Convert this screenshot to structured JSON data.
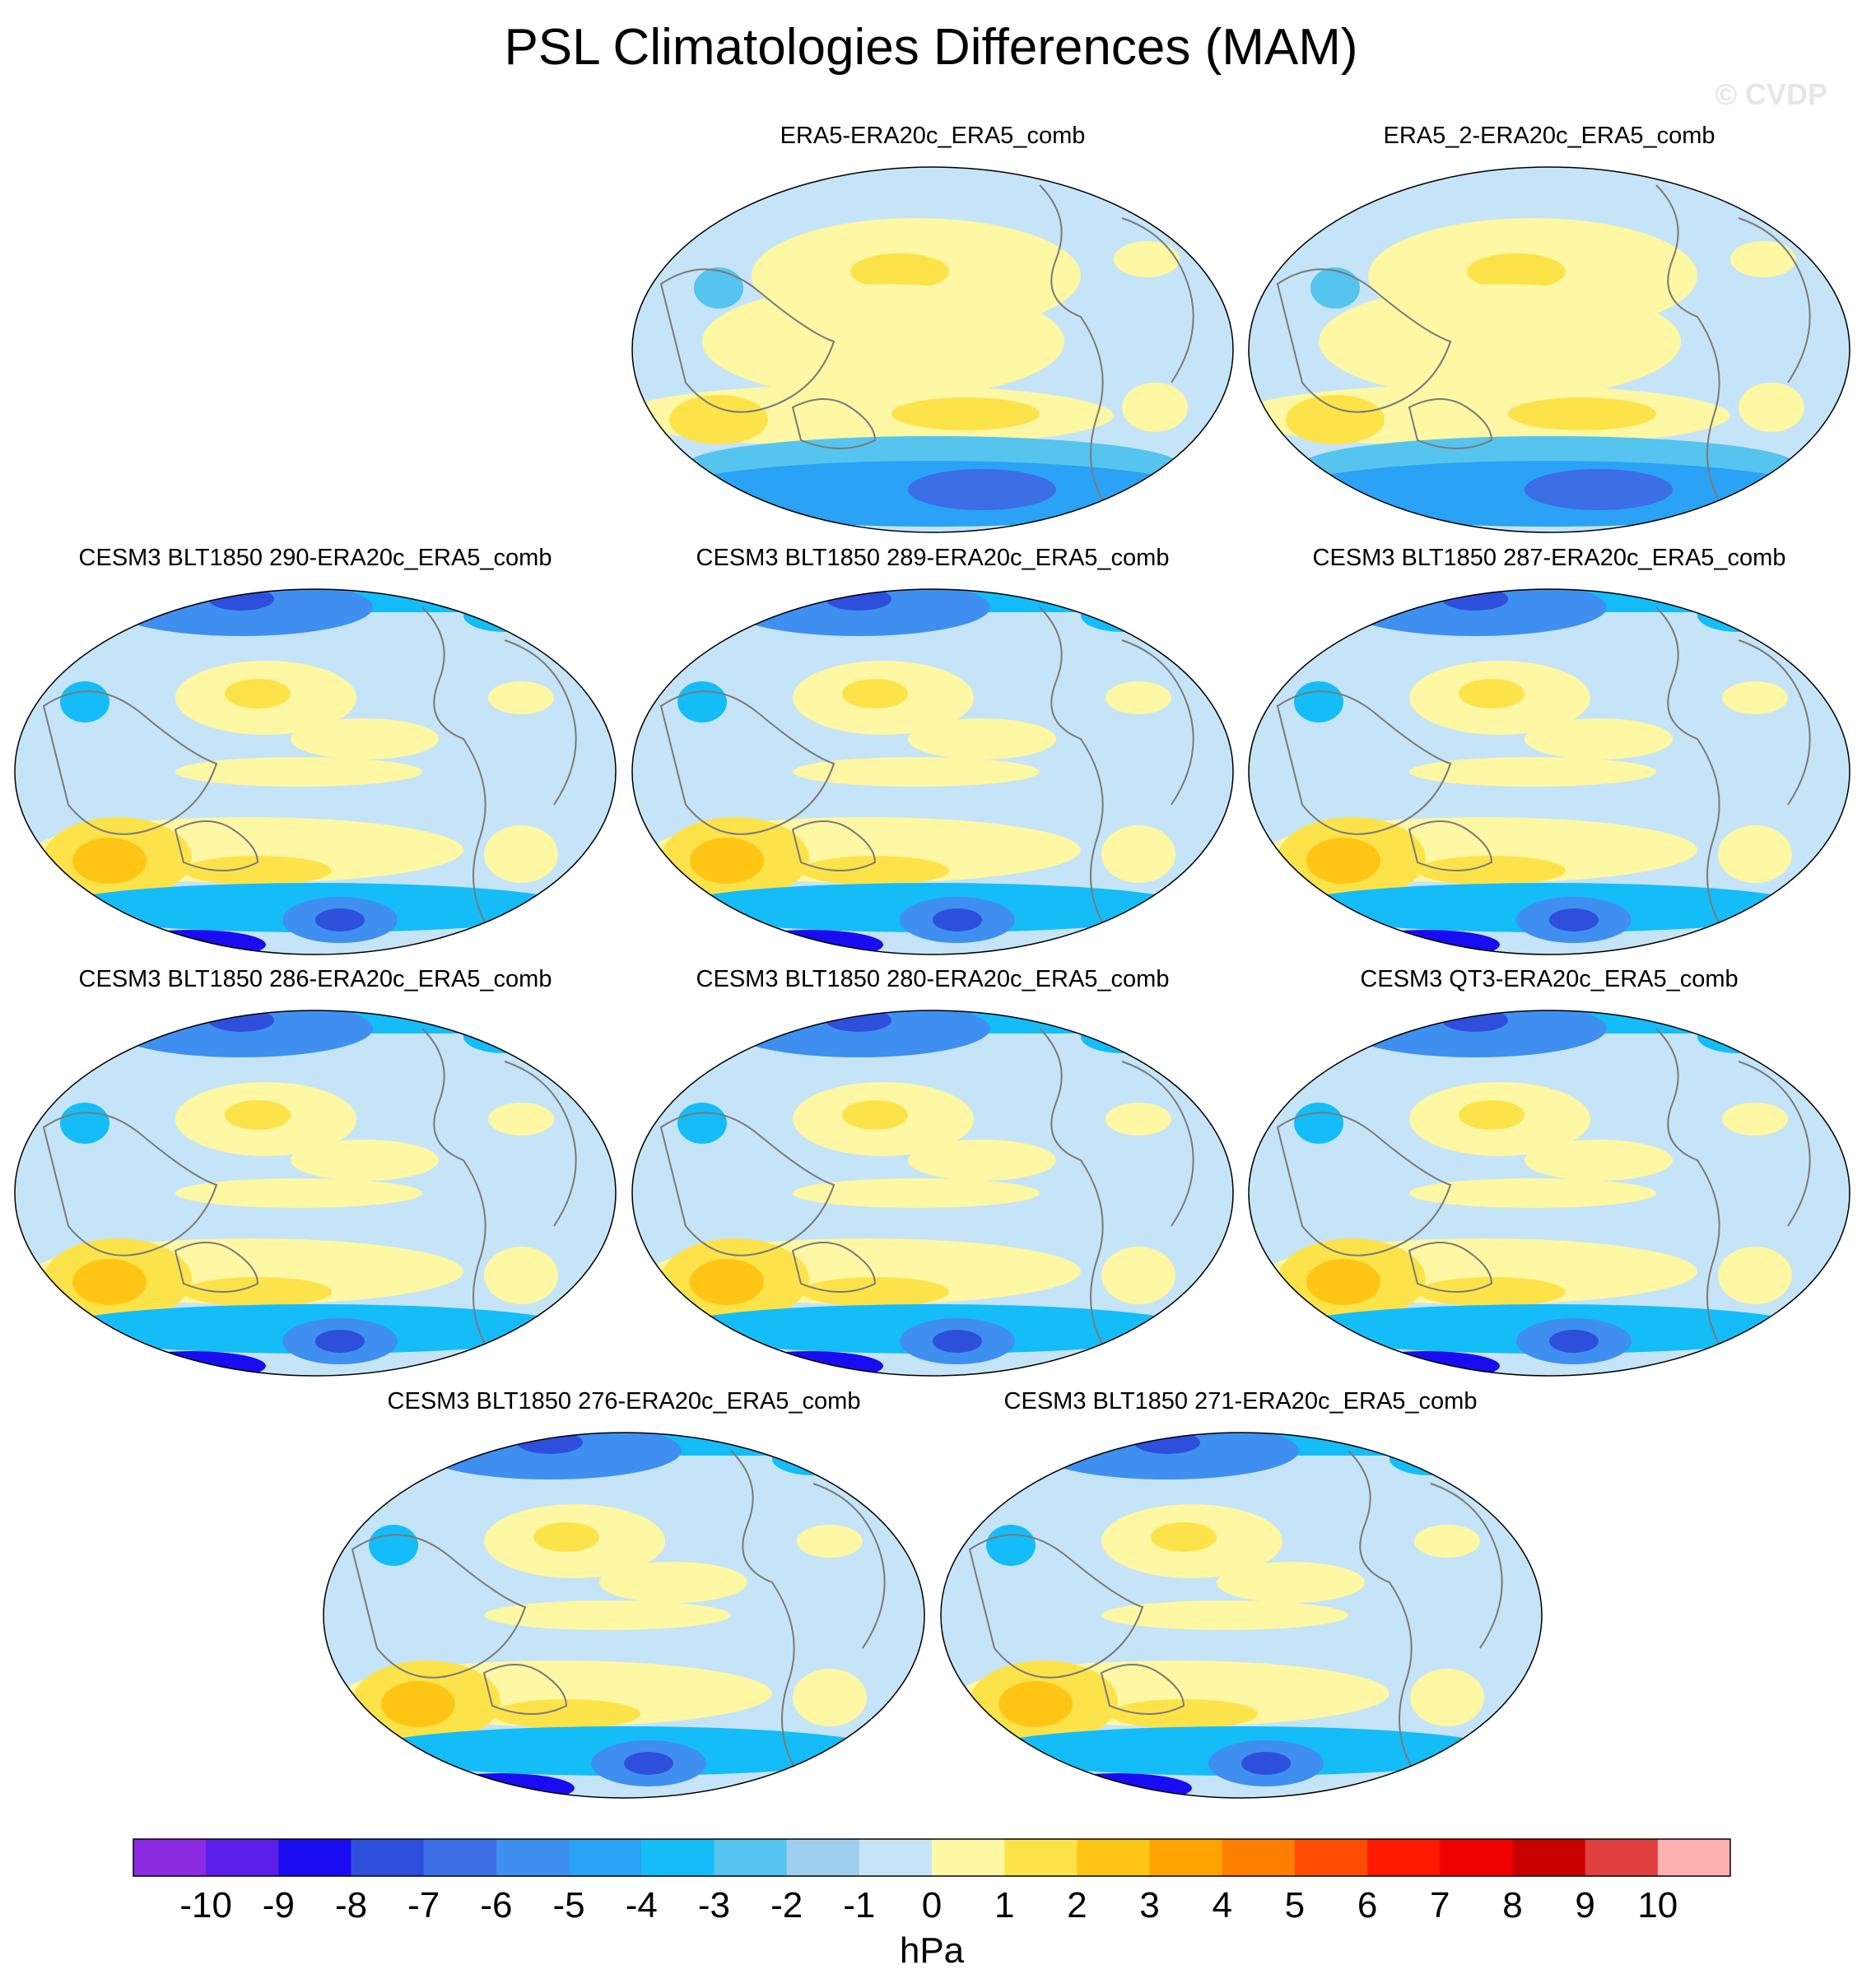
{
  "title": "PSL Climatologies Differences (MAM)",
  "watermark": "© CVDP",
  "panels": [
    {
      "title": "ERA5-ERA20c_ERA5_comb"
    },
    {
      "title": "ERA5_2-ERA20c_ERA5_comb"
    },
    {
      "title": "CESM3 BLT1850 290-ERA20c_ERA5_comb"
    },
    {
      "title": "CESM3 BLT1850 289-ERA20c_ERA5_comb"
    },
    {
      "title": "CESM3 BLT1850 287-ERA20c_ERA5_comb"
    },
    {
      "title": "CESM3 BLT1850 286-ERA20c_ERA5_comb"
    },
    {
      "title": "CESM3 BLT1850 280-ERA20c_ERA5_comb"
    },
    {
      "title": "CESM3 QT3-ERA20c_ERA5_comb"
    },
    {
      "title": "CESM3 BLT1850 276-ERA20c_ERA5_comb"
    },
    {
      "title": "CESM3 BLT1850 271-ERA20c_ERA5_comb"
    }
  ],
  "colorbar": {
    "unit": "hPa",
    "tick_labels": [
      "-10",
      "-9",
      "-8",
      "-7",
      "-6",
      "-5",
      "-4",
      "-3",
      "-2",
      "-1",
      "0",
      "1",
      "2",
      "3",
      "4",
      "5",
      "6",
      "7",
      "8",
      "9",
      "10"
    ],
    "colors": [
      "#8a2be2",
      "#5a1ee8",
      "#1a0cf0",
      "#2e4fdc",
      "#3c6ee6",
      "#3f8ff0",
      "#2aa2f5",
      "#14bdf8",
      "#55c4ef",
      "#9ecfee",
      "#c5e4f7",
      "#fef7a3",
      "#fde34a",
      "#ffc515",
      "#ffa300",
      "#ff7f00",
      "#ff4c00",
      "#ff1a00",
      "#f00000",
      "#c80000",
      "#e04040",
      "#ffb0b0"
    ]
  }
}
